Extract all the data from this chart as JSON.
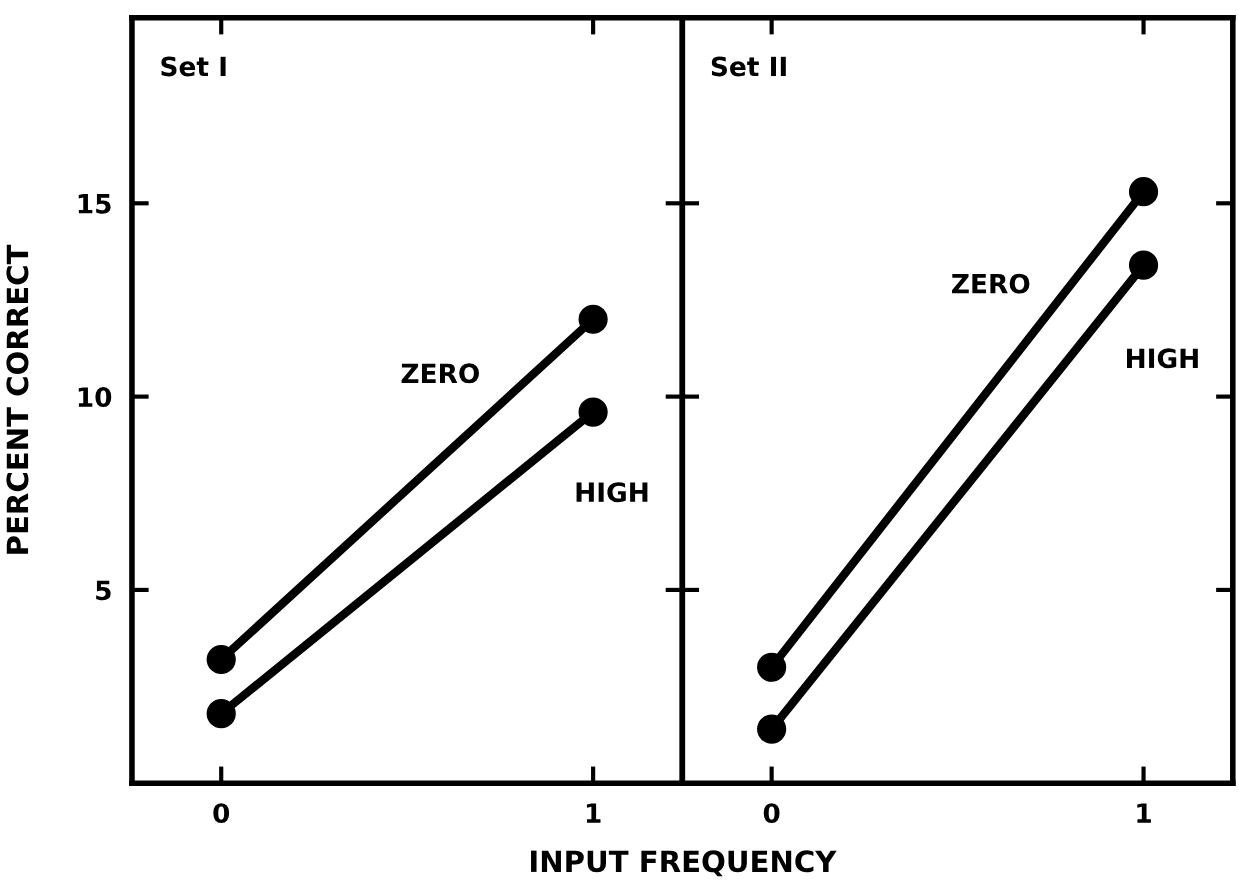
{
  "chart_data": [
    {
      "type": "line",
      "title": "Set I",
      "xlabel": "INPUT FREQUENCY",
      "ylabel": "PERCENT CORRECT",
      "categories": [
        "0",
        "1"
      ],
      "ylim": [
        0,
        19.8
      ],
      "yticks": [
        5,
        10,
        15
      ],
      "marker": "circle",
      "line_style": "solid",
      "grid": false,
      "legend": false,
      "series": [
        {
          "name": "ZERO",
          "color": "#000000",
          "values": [
            3.2,
            12.0
          ]
        },
        {
          "name": "HIGH",
          "color": "#000000",
          "values": [
            1.8,
            9.6
          ]
        }
      ]
    },
    {
      "type": "line",
      "title": "Set II",
      "categories": [
        "0",
        "1"
      ],
      "ylim": [
        0,
        19.8
      ],
      "yticks": [
        5,
        10,
        15
      ],
      "tick_labels": "x",
      "marker": "circle",
      "line_style": "solid",
      "grid": false,
      "legend": false,
      "series": [
        {
          "name": "ZERO",
          "color": "#000000",
          "values": [
            3.0,
            15.3
          ]
        },
        {
          "name": "HIGH",
          "color": "#000000",
          "values": [
            1.4,
            13.4
          ]
        }
      ]
    }
  ]
}
